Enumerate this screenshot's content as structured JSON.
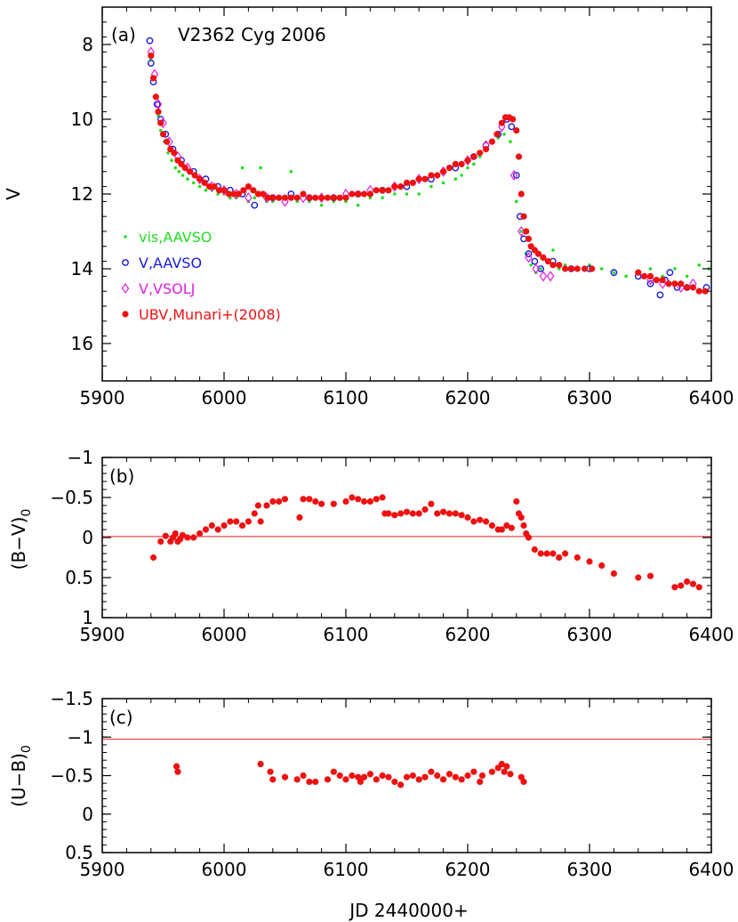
{
  "chart_data": [
    {
      "panel": "a",
      "type": "scatter",
      "panel_tag": "(a)",
      "title": "V2362 Cyg 2006",
      "xlabel": "",
      "ylabel": "V",
      "xlim": [
        5900,
        6400
      ],
      "ylim": [
        17,
        7
      ],
      "y_inverted": true,
      "x_ticks": [
        "5900",
        "6000",
        "6100",
        "6200",
        "6300",
        "6400"
      ],
      "y_ticks": [
        "8",
        "10",
        "12",
        "14",
        "16"
      ],
      "x_tick_values": [
        5900,
        6000,
        6100,
        6200,
        6300,
        6400
      ],
      "y_tick_values": [
        8,
        10,
        12,
        14,
        16
      ],
      "legend_position": "left",
      "series": [
        {
          "name": "vis,AAVSO",
          "marker": "dot",
          "color": "#22dd22",
          "x": [
            5940,
            5942,
            5944,
            5946,
            5948,
            5951,
            5954,
            5957,
            5960,
            5963,
            5966,
            5970,
            5975,
            5980,
            5985,
            5990,
            5995,
            6000,
            6005,
            6010,
            6015,
            6020,
            6025,
            6030,
            6035,
            6040,
            6050,
            6055,
            6060,
            6070,
            6080,
            6090,
            6100,
            6110,
            6120,
            6130,
            6140,
            6150,
            6160,
            6170,
            6180,
            6190,
            6195,
            6200,
            6205,
            6210,
            6215,
            6220,
            6225,
            6230,
            6235,
            6240,
            6244,
            6248,
            6252,
            6256,
            6260,
            6265,
            6270,
            6275,
            6280,
            6290,
            6300,
            6310,
            6320,
            6330,
            6340,
            6350,
            6360,
            6370,
            6380,
            6390,
            6398
          ],
          "y": [
            8.4,
            8.9,
            9.4,
            9.9,
            10.3,
            10.6,
            10.9,
            11.1,
            11.3,
            11.4,
            11.5,
            11.6,
            11.7,
            11.8,
            11.9,
            11.9,
            12.0,
            12.0,
            12.1,
            12.1,
            11.3,
            12.2,
            12.1,
            11.3,
            12.2,
            12.2,
            12.1,
            11.4,
            12.2,
            12.2,
            12.3,
            12.2,
            12.2,
            12.3,
            12.1,
            12.1,
            12.0,
            12.0,
            12.0,
            11.8,
            11.7,
            11.6,
            11.5,
            11.3,
            11.2,
            11.0,
            10.8,
            10.6,
            10.5,
            10.4,
            10.6,
            12.2,
            13.0,
            13.6,
            13.9,
            14.1,
            14.0,
            13.8,
            13.5,
            14.0,
            13.9,
            14.0,
            13.9,
            14.0,
            14.1,
            14.2,
            14.1,
            14.0,
            14.2,
            14.0,
            14.2,
            13.9,
            14.0
          ]
        },
        {
          "name": "V,AAVSO",
          "marker": "circle",
          "color": "#1a1adc",
          "x": [
            5939,
            5940,
            5942,
            5945,
            5948,
            5952,
            5958,
            5965,
            5975,
            5985,
            5995,
            6005,
            6015,
            6025,
            6040,
            6055,
            6070,
            6090,
            6110,
            6130,
            6150,
            6170,
            6190,
            6205,
            6215,
            6225,
            6232,
            6236,
            6240,
            6243,
            6246,
            6250,
            6255,
            6260,
            6270,
            6285,
            6300,
            6320,
            6340,
            6350,
            6358,
            6362,
            6366,
            6372,
            6380,
            6396
          ],
          "y": [
            7.9,
            8.5,
            9.0,
            9.6,
            10.0,
            10.4,
            10.8,
            11.1,
            11.4,
            11.6,
            11.8,
            11.9,
            12.0,
            12.3,
            12.1,
            12.0,
            12.1,
            12.1,
            12.0,
            11.9,
            11.8,
            11.6,
            11.3,
            11.0,
            10.7,
            10.4,
            10.0,
            10.2,
            11.5,
            12.6,
            13.2,
            13.6,
            13.8,
            14.0,
            13.8,
            14.0,
            14.0,
            14.1,
            14.2,
            14.4,
            14.7,
            14.3,
            14.1,
            14.5,
            14.5,
            14.5
          ]
        },
        {
          "name": "V,VSOLJ",
          "marker": "diamond",
          "color": "#e020e0",
          "x": [
            5940,
            5943,
            5946,
            5950,
            5955,
            5962,
            5970,
            5980,
            5990,
            6000,
            6010,
            6020,
            6035,
            6050,
            6065,
            6080,
            6100,
            6120,
            6140,
            6160,
            6180,
            6200,
            6215,
            6228,
            6238,
            6244,
            6250,
            6256,
            6262,
            6268,
            6350,
            6360,
            6375,
            6385
          ],
          "y": [
            8.2,
            8.8,
            9.6,
            10.1,
            10.6,
            11.0,
            11.3,
            11.6,
            11.8,
            11.9,
            12.0,
            12.1,
            12.1,
            12.2,
            12.1,
            12.1,
            12.0,
            11.9,
            11.8,
            11.6,
            11.4,
            11.1,
            10.7,
            10.2,
            11.5,
            13.0,
            13.7,
            14.0,
            14.2,
            14.2,
            14.3,
            14.4,
            14.5,
            14.4
          ]
        },
        {
          "name": "UBV,Munari+(2008)",
          "marker": "filled-circle",
          "color": "#ee1111",
          "x": [
            5940,
            5942,
            5944,
            5946,
            5948,
            5950,
            5953,
            5956,
            5959,
            5962,
            5965,
            5968,
            5972,
            5976,
            5980,
            5984,
            5988,
            5992,
            5996,
            6000,
            6004,
            6008,
            6012,
            6016,
            6020,
            6024,
            6028,
            6032,
            6036,
            6040,
            6045,
            6050,
            6055,
            6060,
            6065,
            6070,
            6075,
            6080,
            6085,
            6090,
            6095,
            6100,
            6105,
            6110,
            6115,
            6120,
            6125,
            6130,
            6135,
            6140,
            6145,
            6150,
            6155,
            6160,
            6165,
            6170,
            6175,
            6180,
            6185,
            6190,
            6195,
            6200,
            6205,
            6210,
            6215,
            6220,
            6224,
            6228,
            6231,
            6234,
            6237,
            6240,
            6242,
            6244,
            6246,
            6248,
            6250,
            6252,
            6255,
            6258,
            6262,
            6266,
            6270,
            6275,
            6280,
            6285,
            6290,
            6296,
            6302,
            6340,
            6345,
            6350,
            6355,
            6360,
            6365,
            6370,
            6375,
            6380,
            6385,
            6390,
            6395
          ],
          "y": [
            8.3,
            8.9,
            9.4,
            9.8,
            10.1,
            10.4,
            10.6,
            10.8,
            10.9,
            11.1,
            11.2,
            11.3,
            11.4,
            11.5,
            11.6,
            11.7,
            11.8,
            11.8,
            11.9,
            11.9,
            12.0,
            12.0,
            12.0,
            11.9,
            11.8,
            11.9,
            12.0,
            12.0,
            12.1,
            12.1,
            12.1,
            12.1,
            12.1,
            12.1,
            12.0,
            12.1,
            12.1,
            12.1,
            12.1,
            12.1,
            12.1,
            12.1,
            12.0,
            12.0,
            12.0,
            12.0,
            11.9,
            11.9,
            11.9,
            11.8,
            11.8,
            11.7,
            11.7,
            11.6,
            11.6,
            11.5,
            11.5,
            11.4,
            11.3,
            11.2,
            11.2,
            11.1,
            11.0,
            10.9,
            10.8,
            10.6,
            10.4,
            10.1,
            9.95,
            9.95,
            10.0,
            10.3,
            11.0,
            12.0,
            12.6,
            13.0,
            13.2,
            13.4,
            13.5,
            13.6,
            13.7,
            13.8,
            13.9,
            13.9,
            14.0,
            14.0,
            14.0,
            14.0,
            14.0,
            14.1,
            14.2,
            14.2,
            14.3,
            14.3,
            14.4,
            14.4,
            14.4,
            14.5,
            14.5,
            14.6,
            14.6
          ]
        }
      ]
    },
    {
      "panel": "b",
      "type": "scatter",
      "panel_tag": "(b)",
      "xlabel": "",
      "ylabel": "(B−V)",
      "ylabel_sub": "0",
      "xlim": [
        5900,
        6400
      ],
      "ylim": [
        1,
        -1
      ],
      "y_inverted": true,
      "x_ticks": [
        "5900",
        "6000",
        "6100",
        "6200",
        "6300",
        "6400"
      ],
      "y_ticks": [
        "−1",
        "−0.5",
        "0",
        "0.5",
        "1"
      ],
      "x_tick_values": [
        5900,
        6000,
        6100,
        6200,
        6300,
        6400
      ],
      "y_tick_values": [
        -1,
        -0.5,
        0,
        0.5,
        1
      ],
      "reference_line_y": -0.02,
      "series": [
        {
          "name": "",
          "marker": "filled-circle",
          "color": "#ee1111",
          "x": [
            5942,
            5948,
            5952,
            5956,
            5958,
            5960,
            5962,
            5964,
            5966,
            5970,
            5975,
            5980,
            5985,
            5990,
            5995,
            6000,
            6005,
            6010,
            6015,
            6020,
            6025,
            6028,
            6030,
            6035,
            6040,
            6045,
            6050,
            6062,
            6065,
            6070,
            6075,
            6080,
            6090,
            6100,
            6105,
            6110,
            6115,
            6120,
            6125,
            6130,
            6132,
            6135,
            6140,
            6145,
            6150,
            6155,
            6160,
            6165,
            6170,
            6175,
            6180,
            6185,
            6190,
            6195,
            6200,
            6205,
            6210,
            6215,
            6220,
            6225,
            6228,
            6232,
            6236,
            6240,
            6242,
            6244,
            6246,
            6248,
            6250,
            6255,
            6260,
            6265,
            6270,
            6275,
            6280,
            6290,
            6300,
            6310,
            6320,
            6340,
            6350,
            6370,
            6375,
            6380,
            6385,
            6390
          ],
          "y": [
            0.25,
            0.05,
            -0.02,
            0.05,
            0.0,
            -0.05,
            0.05,
            0.02,
            -0.03,
            0.0,
            0.0,
            -0.05,
            -0.1,
            -0.15,
            -0.1,
            -0.15,
            -0.2,
            -0.2,
            -0.15,
            -0.2,
            -0.3,
            -0.4,
            -0.2,
            -0.4,
            -0.45,
            -0.45,
            -0.48,
            -0.25,
            -0.48,
            -0.48,
            -0.45,
            -0.42,
            -0.42,
            -0.45,
            -0.5,
            -0.48,
            -0.45,
            -0.45,
            -0.48,
            -0.5,
            -0.3,
            -0.3,
            -0.28,
            -0.3,
            -0.32,
            -0.3,
            -0.3,
            -0.35,
            -0.42,
            -0.3,
            -0.32,
            -0.3,
            -0.3,
            -0.28,
            -0.25,
            -0.2,
            -0.22,
            -0.2,
            -0.15,
            -0.1,
            -0.1,
            -0.15,
            -0.12,
            -0.45,
            -0.3,
            -0.25,
            -0.15,
            -0.05,
            0.0,
            0.15,
            0.2,
            0.2,
            0.2,
            0.25,
            0.2,
            0.25,
            0.3,
            0.35,
            0.45,
            0.5,
            0.48,
            0.62,
            0.6,
            0.55,
            0.58,
            0.62
          ]
        }
      ]
    },
    {
      "panel": "c",
      "type": "scatter",
      "panel_tag": "(c)",
      "xlabel": "JD 2440000+",
      "ylabel": "(U−B)",
      "ylabel_sub": "0",
      "xlim": [
        5900,
        6400
      ],
      "ylim": [
        0.5,
        -1.5
      ],
      "y_inverted": true,
      "x_ticks": [
        "5900",
        "6000",
        "6100",
        "6200",
        "6300",
        "6400"
      ],
      "y_ticks": [
        "−1.5",
        "−1",
        "−0.5",
        "0",
        "0.5"
      ],
      "x_tick_values": [
        5900,
        6000,
        6100,
        6200,
        6300,
        6400
      ],
      "y_tick_values": [
        -1.5,
        -1,
        -0.5,
        0,
        0.5
      ],
      "reference_line_y": -0.98,
      "series": [
        {
          "name": "",
          "marker": "filled-circle",
          "color": "#ee1111",
          "x": [
            5961,
            5962,
            6030,
            6038,
            6040,
            6050,
            6060,
            6065,
            6070,
            6075,
            6085,
            6090,
            6095,
            6100,
            6105,
            6110,
            6112,
            6115,
            6120,
            6125,
            6130,
            6135,
            6140,
            6145,
            6150,
            6155,
            6160,
            6165,
            6170,
            6175,
            6180,
            6185,
            6190,
            6195,
            6200,
            6205,
            6210,
            6212,
            6220,
            6225,
            6228,
            6230,
            6232,
            6235,
            6244,
            6246
          ],
          "y": [
            -0.62,
            -0.55,
            -0.65,
            -0.55,
            -0.45,
            -0.48,
            -0.45,
            -0.5,
            -0.42,
            -0.42,
            -0.45,
            -0.55,
            -0.5,
            -0.45,
            -0.5,
            -0.48,
            -0.42,
            -0.48,
            -0.52,
            -0.45,
            -0.5,
            -0.48,
            -0.42,
            -0.38,
            -0.48,
            -0.5,
            -0.45,
            -0.48,
            -0.55,
            -0.5,
            -0.45,
            -0.52,
            -0.48,
            -0.45,
            -0.5,
            -0.55,
            -0.42,
            -0.5,
            -0.55,
            -0.6,
            -0.65,
            -0.55,
            -0.62,
            -0.52,
            -0.48,
            -0.42
          ]
        }
      ]
    }
  ]
}
